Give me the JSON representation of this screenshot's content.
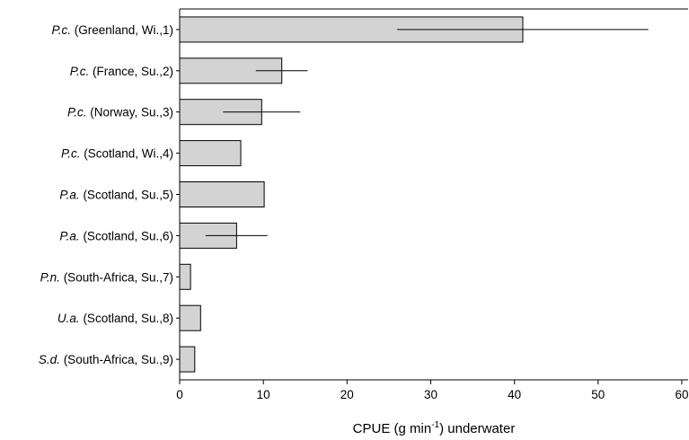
{
  "chart_data": {
    "type": "bar",
    "orientation": "horizontal",
    "categories": [
      {
        "abbr": "P.c.",
        "rest": " (Greenland, Wi.,1)"
      },
      {
        "abbr": "P.c.",
        "rest": " (France, Su.,2)"
      },
      {
        "abbr": "P.c.",
        "rest": " (Norway, Su.,3)"
      },
      {
        "abbr": "P.c.",
        "rest": " (Scotland, Wi.,4)"
      },
      {
        "abbr": "P.a.",
        "rest": " (Scotland, Su.,5)"
      },
      {
        "abbr": "P.a.",
        "rest": " (Scotland, Su.,6)"
      },
      {
        "abbr": "P.n.",
        "rest": " (South-Africa, Su.,7)"
      },
      {
        "abbr": "U.a.",
        "rest": " (Scotland, Su.,8)"
      },
      {
        "abbr": "S.d.",
        "rest": " (South-Africa, Su.,9)"
      }
    ],
    "values": [
      41.0,
      12.2,
      9.8,
      7.3,
      10.1,
      6.8,
      1.3,
      2.5,
      1.8
    ],
    "errors": [
      15.0,
      3.1,
      4.6,
      null,
      null,
      3.7,
      null,
      null,
      null
    ],
    "xlim": [
      0,
      62
    ],
    "xticks": [
      0,
      10,
      20,
      30,
      40,
      50,
      60
    ],
    "xlabel": {
      "main": "CPUE (g min",
      "sup": "-1",
      "tail": ") underwater"
    },
    "ylabel": "",
    "bar_color": "#d3d3d3",
    "bar_edge_color": "#000000",
    "grid": false,
    "legend": "none"
  }
}
